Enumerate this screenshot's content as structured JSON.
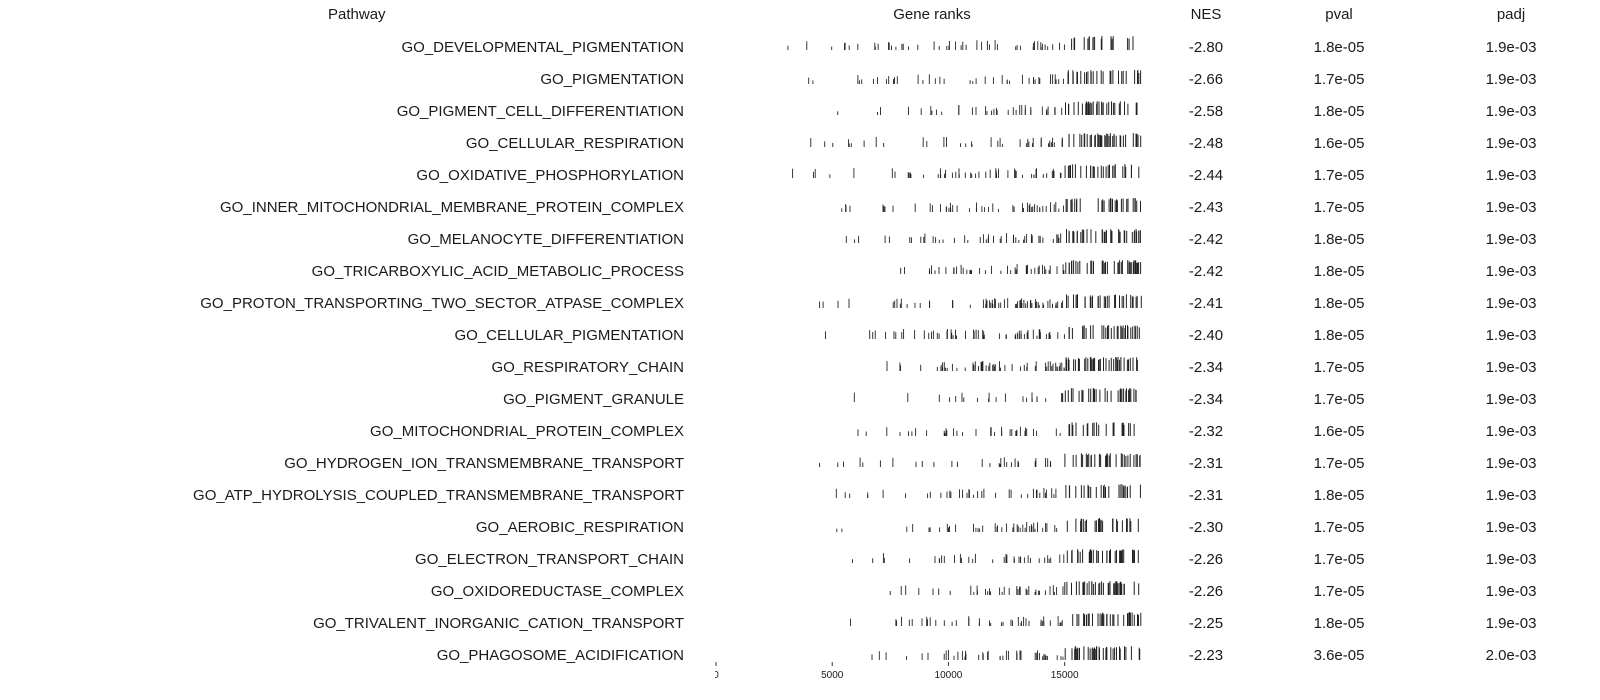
{
  "headers": {
    "pathway": "Pathway",
    "gene_ranks": "Gene ranks",
    "nes": "NES",
    "pval": "pval",
    "padj": "padj"
  },
  "chart_data": {
    "type": "table",
    "title": "",
    "x_axis": {
      "min": 0,
      "max": 18500,
      "ticks": [
        0,
        5000,
        10000,
        15000
      ]
    },
    "rows": [
      {
        "pathway": "GO_DEVELOPMENTAL_PIGMENTATION",
        "nes": "-2.80",
        "pval": "1.8e-05",
        "padj": "1.9e-03"
      },
      {
        "pathway": "GO_PIGMENTATION",
        "nes": "-2.66",
        "pval": "1.7e-05",
        "padj": "1.9e-03"
      },
      {
        "pathway": "GO_PIGMENT_CELL_DIFFERENTIATION",
        "nes": "-2.58",
        "pval": "1.8e-05",
        "padj": "1.9e-03"
      },
      {
        "pathway": "GO_CELLULAR_RESPIRATION",
        "nes": "-2.48",
        "pval": "1.6e-05",
        "padj": "1.9e-03"
      },
      {
        "pathway": "GO_OXIDATIVE_PHOSPHORYLATION",
        "nes": "-2.44",
        "pval": "1.7e-05",
        "padj": "1.9e-03"
      },
      {
        "pathway": "GO_INNER_MITOCHONDRIAL_MEMBRANE_PROTEIN_COMPLEX",
        "nes": "-2.43",
        "pval": "1.7e-05",
        "padj": "1.9e-03"
      },
      {
        "pathway": "GO_MELANOCYTE_DIFFERENTIATION",
        "nes": "-2.42",
        "pval": "1.8e-05",
        "padj": "1.9e-03"
      },
      {
        "pathway": "GO_TRICARBOXYLIC_ACID_METABOLIC_PROCESS",
        "nes": "-2.42",
        "pval": "1.8e-05",
        "padj": "1.9e-03"
      },
      {
        "pathway": "GO_PROTON_TRANSPORTING_TWO_SECTOR_ATPASE_COMPLEX",
        "nes": "-2.41",
        "pval": "1.8e-05",
        "padj": "1.9e-03"
      },
      {
        "pathway": "GO_CELLULAR_PIGMENTATION",
        "nes": "-2.40",
        "pval": "1.8e-05",
        "padj": "1.9e-03"
      },
      {
        "pathway": "GO_RESPIRATORY_CHAIN",
        "nes": "-2.34",
        "pval": "1.7e-05",
        "padj": "1.9e-03"
      },
      {
        "pathway": "GO_PIGMENT_GRANULE",
        "nes": "-2.34",
        "pval": "1.7e-05",
        "padj": "1.9e-03"
      },
      {
        "pathway": "GO_MITOCHONDRIAL_PROTEIN_COMPLEX",
        "nes": "-2.32",
        "pval": "1.6e-05",
        "padj": "1.9e-03"
      },
      {
        "pathway": "GO_HYDROGEN_ION_TRANSMEMBRANE_TRANSPORT",
        "nes": "-2.31",
        "pval": "1.7e-05",
        "padj": "1.9e-03"
      },
      {
        "pathway": "GO_ATP_HYDROLYSIS_COUPLED_TRANSMEMBRANE_TRANSPORT",
        "nes": "-2.31",
        "pval": "1.8e-05",
        "padj": "1.9e-03"
      },
      {
        "pathway": "GO_AEROBIC_RESPIRATION",
        "nes": "-2.30",
        "pval": "1.7e-05",
        "padj": "1.9e-03"
      },
      {
        "pathway": "GO_ELECTRON_TRANSPORT_CHAIN",
        "nes": "-2.26",
        "pval": "1.7e-05",
        "padj": "1.9e-03"
      },
      {
        "pathway": "GO_OXIDOREDUCTASE_COMPLEX",
        "nes": "-2.26",
        "pval": "1.7e-05",
        "padj": "1.9e-03"
      },
      {
        "pathway": "GO_TRIVALENT_INORGANIC_CATION_TRANSPORT",
        "nes": "-2.25",
        "pval": "1.8e-05",
        "padj": "1.9e-03"
      },
      {
        "pathway": "GO_PHAGOSOME_ACIDIFICATION",
        "nes": "-2.23",
        "pval": "3.6e-05",
        "padj": "2.0e-03"
      }
    ]
  }
}
